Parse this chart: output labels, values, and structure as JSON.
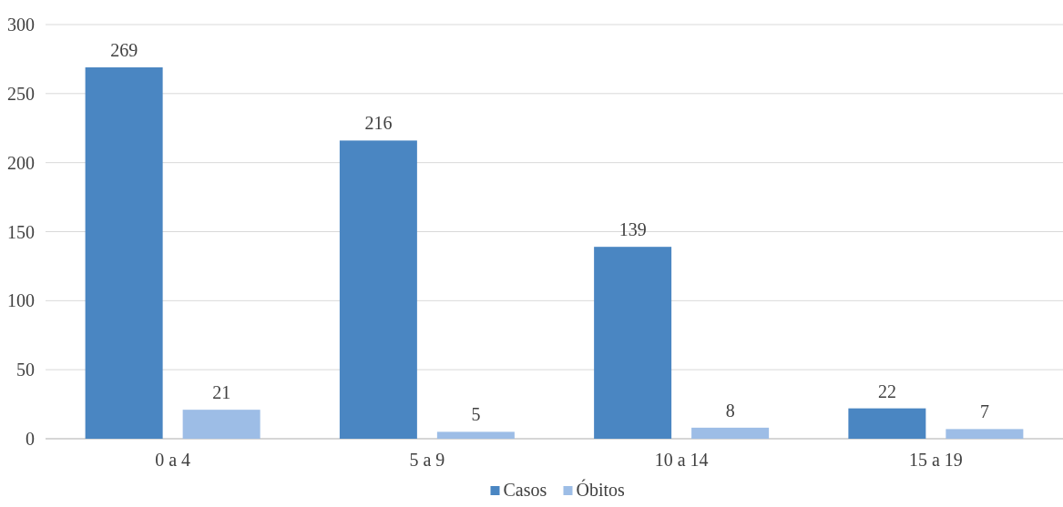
{
  "chart_data": {
    "type": "bar",
    "categories": [
      "0 a 4",
      "5 a 9",
      "10 a 14",
      "15 a 19"
    ],
    "series": [
      {
        "name": "Casos",
        "color": "#4a86c2",
        "values": [
          269,
          216,
          139,
          22
        ]
      },
      {
        "name": "Óbitos",
        "color": "#9dbde6",
        "values": [
          21,
          5,
          8,
          7
        ]
      }
    ],
    "ylim": [
      0,
      300
    ],
    "yticks": [
      0,
      50,
      100,
      150,
      200,
      250,
      300
    ],
    "grid": "y",
    "legend": "bottom",
    "data_labels": true
  }
}
